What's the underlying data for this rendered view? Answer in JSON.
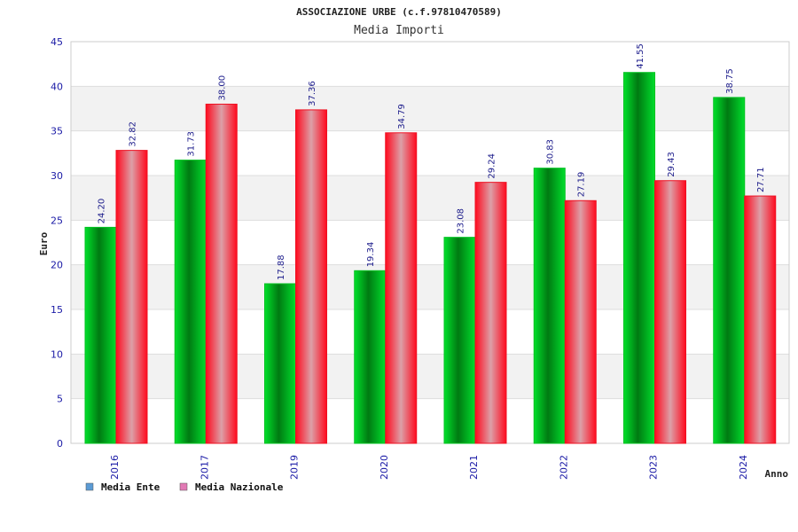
{
  "chart_data": {
    "type": "bar",
    "title": "ASSOCIAZIONE URBE (c.f.97810470589)",
    "subtitle": "Media Importi",
    "xlabel": "Anno",
    "ylabel": "Euro",
    "ylim": [
      0,
      45
    ],
    "yticks": [
      "0",
      "5",
      "10",
      "15",
      "20",
      "25",
      "30",
      "35",
      "40",
      "45"
    ],
    "categories": [
      "2016",
      "2017",
      "2019",
      "2020",
      "2021",
      "2022",
      "2023",
      "2024"
    ],
    "series": [
      {
        "name": "Media Ente",
        "values": [
          24.2,
          31.73,
          17.88,
          19.34,
          23.08,
          30.83,
          41.55,
          38.75
        ],
        "labels": [
          "24.20",
          "31.73",
          "17.88",
          "19.34",
          "23.08",
          "30.83",
          "41.55",
          "38.75"
        ],
        "color": "#00c020",
        "legend_color": "#5b9bd5"
      },
      {
        "name": "Media Nazionale",
        "values": [
          32.82,
          38.0,
          37.36,
          34.79,
          29.24,
          27.19,
          29.43,
          27.71
        ],
        "labels": [
          "32.82",
          "38.00",
          "37.36",
          "34.79",
          "29.24",
          "27.19",
          "29.43",
          "27.71"
        ],
        "color": "#ee1122",
        "legend_color": "#e27ab5"
      }
    ],
    "grid": true,
    "legend_position": "bottom-left"
  }
}
